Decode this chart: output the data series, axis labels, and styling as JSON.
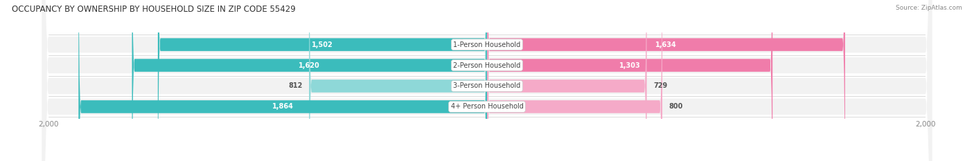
{
  "title": "OCCUPANCY BY OWNERSHIP BY HOUSEHOLD SIZE IN ZIP CODE 55429",
  "source": "Source: ZipAtlas.com",
  "categories": [
    "1-Person Household",
    "2-Person Household",
    "3-Person Household",
    "4+ Person Household"
  ],
  "owner_values": [
    1502,
    1620,
    812,
    1864
  ],
  "renter_values": [
    1634,
    1303,
    729,
    800
  ],
  "max_val": 2000,
  "owner_color": "#3bbcbc",
  "owner_color_light": "#8ed8d8",
  "renter_color": "#f07caa",
  "renter_color_light": "#f5aac8",
  "bar_bg_color": "#e0e0e0",
  "row_bg_color": "#f2f2f2",
  "title_fontsize": 8.5,
  "label_fontsize": 7,
  "tick_fontsize": 7.5,
  "source_fontsize": 6.5,
  "legend_fontsize": 7.5,
  "bar_height": 0.62,
  "inside_threshold": 1000
}
